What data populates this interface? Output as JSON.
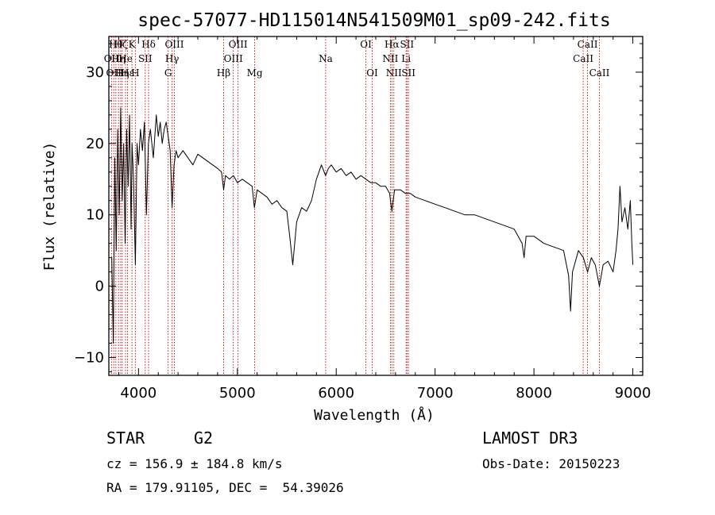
{
  "chart_data": {
    "type": "line",
    "title": "spec-57077-HD115014N541509M01_sp09-242.fits",
    "xlabel": "Wavelength (Å)",
    "ylabel": "Flux (relative)",
    "xlim": [
      3700,
      9100
    ],
    "ylim": [
      -12.5,
      35
    ],
    "x_ticks": [
      4000,
      5000,
      6000,
      7000,
      8000,
      9000
    ],
    "y_ticks": [
      -10,
      0,
      10,
      20,
      30
    ],
    "grid": false,
    "line_color": "#000000",
    "marker_color": "#cc0000",
    "series": [
      {
        "values": [
          [
            3730,
            4
          ],
          [
            3745,
            -8
          ],
          [
            3760,
            18
          ],
          [
            3775,
            5
          ],
          [
            3790,
            22
          ],
          [
            3805,
            10
          ],
          [
            3820,
            25
          ],
          [
            3835,
            12
          ],
          [
            3850,
            20
          ],
          [
            3865,
            6
          ],
          [
            3880,
            22
          ],
          [
            3895,
            14
          ],
          [
            3910,
            24
          ],
          [
            3925,
            8
          ],
          [
            3935,
            20
          ],
          [
            3950,
            15
          ],
          [
            3968,
            3
          ],
          [
            3985,
            20
          ],
          [
            4000,
            17
          ],
          [
            4020,
            22
          ],
          [
            4040,
            19
          ],
          [
            4060,
            23
          ],
          [
            4080,
            10
          ],
          [
            4100,
            20
          ],
          [
            4120,
            22
          ],
          [
            4150,
            18
          ],
          [
            4180,
            24
          ],
          [
            4200,
            21
          ],
          [
            4220,
            23
          ],
          [
            4240,
            20
          ],
          [
            4260,
            22
          ],
          [
            4280,
            23
          ],
          [
            4300,
            21
          ],
          [
            4320,
            19
          ],
          [
            4340,
            11
          ],
          [
            4360,
            17
          ],
          [
            4380,
            19
          ],
          [
            4400,
            18
          ],
          [
            4450,
            19
          ],
          [
            4500,
            18
          ],
          [
            4550,
            17
          ],
          [
            4600,
            18.5
          ],
          [
            4650,
            18
          ],
          [
            4700,
            17.5
          ],
          [
            4750,
            17
          ],
          [
            4800,
            16.5
          ],
          [
            4840,
            16
          ],
          [
            4861,
            13.5
          ],
          [
            4880,
            15.5
          ],
          [
            4920,
            15
          ],
          [
            4960,
            15.5
          ],
          [
            5000,
            14.5
          ],
          [
            5050,
            15
          ],
          [
            5100,
            14.5
          ],
          [
            5150,
            14
          ],
          [
            5172,
            11
          ],
          [
            5200,
            13.5
          ],
          [
            5250,
            13
          ],
          [
            5300,
            12.5
          ],
          [
            5350,
            11.5
          ],
          [
            5400,
            12
          ],
          [
            5450,
            11
          ],
          [
            5500,
            10.5
          ],
          [
            5530,
            7
          ],
          [
            5560,
            3
          ],
          [
            5600,
            9
          ],
          [
            5650,
            11
          ],
          [
            5700,
            10.5
          ],
          [
            5750,
            12
          ],
          [
            5800,
            15
          ],
          [
            5850,
            17
          ],
          [
            5892,
            15.5
          ],
          [
            5920,
            16.5
          ],
          [
            5950,
            17
          ],
          [
            6000,
            16
          ],
          [
            6050,
            16.5
          ],
          [
            6100,
            15.5
          ],
          [
            6150,
            16
          ],
          [
            6200,
            15
          ],
          [
            6250,
            15.5
          ],
          [
            6300,
            15
          ],
          [
            6350,
            14.5
          ],
          [
            6400,
            14.5
          ],
          [
            6450,
            14
          ],
          [
            6500,
            14
          ],
          [
            6540,
            13
          ],
          [
            6563,
            10.5
          ],
          [
            6590,
            13.5
          ],
          [
            6650,
            13.5
          ],
          [
            6700,
            13
          ],
          [
            6750,
            13
          ],
          [
            6800,
            12.5
          ],
          [
            6900,
            12
          ],
          [
            7000,
            11.5
          ],
          [
            7100,
            11
          ],
          [
            7200,
            10.5
          ],
          [
            7300,
            10
          ],
          [
            7400,
            10
          ],
          [
            7500,
            9.5
          ],
          [
            7600,
            9
          ],
          [
            7700,
            8.5
          ],
          [
            7800,
            8
          ],
          [
            7880,
            6
          ],
          [
            7900,
            4
          ],
          [
            7920,
            7
          ],
          [
            8000,
            7
          ],
          [
            8100,
            6
          ],
          [
            8200,
            5.5
          ],
          [
            8300,
            5
          ],
          [
            8350,
            1.5
          ],
          [
            8370,
            -3.5
          ],
          [
            8390,
            2
          ],
          [
            8450,
            5
          ],
          [
            8500,
            4
          ],
          [
            8542,
            2
          ],
          [
            8580,
            4
          ],
          [
            8620,
            3
          ],
          [
            8662,
            0
          ],
          [
            8700,
            3
          ],
          [
            8750,
            3.5
          ],
          [
            8800,
            2
          ],
          [
            8830,
            5
          ],
          [
            8850,
            8
          ],
          [
            8870,
            14
          ],
          [
            8890,
            9
          ],
          [
            8920,
            11
          ],
          [
            8950,
            8
          ],
          [
            8975,
            12
          ],
          [
            8990,
            6
          ],
          [
            9000,
            3
          ]
        ]
      }
    ]
  },
  "line_markers": [
    {
      "x": 3727,
      "label": "OII",
      "row": 1
    },
    {
      "x": 3750,
      "label": "OII",
      "row": 2
    },
    {
      "x": 3771,
      "label": "Hθ",
      "row": 0
    },
    {
      "x": 3798,
      "label": "Hη",
      "row": 1
    },
    {
      "x": 3820,
      "label": "Hζ",
      "row": 0
    },
    {
      "x": 3835,
      "label": "Hη",
      "row": 2
    },
    {
      "x": 3869,
      "label": "He",
      "row": 1
    },
    {
      "x": 3889,
      "label": "Hε",
      "row": 2
    },
    {
      "x": 3934,
      "label": "K",
      "row": 0
    },
    {
      "x": 3968,
      "label": "H",
      "row": 2
    },
    {
      "x": 4068,
      "label": "SII",
      "row": 1
    },
    {
      "x": 4102,
      "label": "Hδ",
      "row": 0
    },
    {
      "x": 4300,
      "label": "G",
      "row": 2
    },
    {
      "x": 4340,
      "label": "Hγ",
      "row": 1
    },
    {
      "x": 4363,
      "label": "OIII",
      "row": 0
    },
    {
      "x": 4861,
      "label": "Hβ",
      "row": 2
    },
    {
      "x": 4959,
      "label": "OIII",
      "row": 1
    },
    {
      "x": 5007,
      "label": "OIII",
      "row": 0
    },
    {
      "x": 5175,
      "label": "Mg",
      "row": 2
    },
    {
      "x": 5893,
      "label": "Na",
      "row": 1
    },
    {
      "x": 6300,
      "label": "OI",
      "row": 0
    },
    {
      "x": 6364,
      "label": "OI",
      "row": 2
    },
    {
      "x": 6548,
      "label": "NII",
      "row": 1
    },
    {
      "x": 6563,
      "label": "Hα",
      "row": 0
    },
    {
      "x": 6583,
      "label": "NII",
      "row": 2
    },
    {
      "x": 6707,
      "label": "Li",
      "row": 1
    },
    {
      "x": 6716,
      "label": "SII",
      "row": 0
    },
    {
      "x": 6731,
      "label": "SII",
      "row": 2
    },
    {
      "x": 8498,
      "label": "CaII",
      "row": 1
    },
    {
      "x": 8542,
      "label": "CaII",
      "row": 0
    },
    {
      "x": 8662,
      "label": "CaII",
      "row": 2
    }
  ],
  "info": {
    "object_class": "STAR",
    "subclass": "G2",
    "survey": "LAMOST DR3",
    "cz": "cz = 156.9 ± 184.8 km/s",
    "obs_date": "Obs-Date: 20150223",
    "coords": "RA = 179.91105, DEC =  54.39026"
  }
}
